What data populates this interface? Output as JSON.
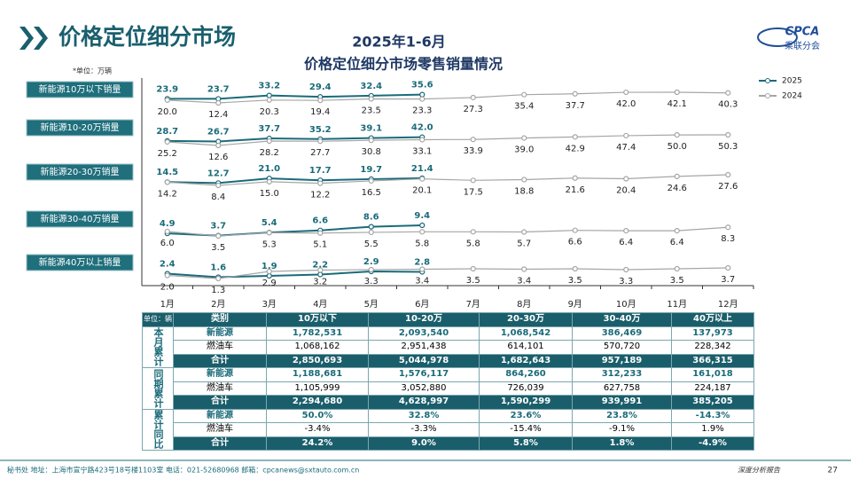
{
  "header": {
    "title": "价格定位细分市场",
    "logo": "CPCA",
    "logo_subtitle": "乘联分会"
  },
  "chart_data": {
    "type": "line",
    "title": "2025年1-6月",
    "subtitle": "价格定位细分市场零售销量情况",
    "unit": "*单位：万辆",
    "categories": [
      "1月",
      "2月",
      "3月",
      "4月",
      "5月",
      "6月",
      "7月",
      "8月",
      "9月",
      "10月",
      "11月",
      "12月"
    ],
    "panels": [
      {
        "label": "新能源10万以下销量",
        "series": [
          {
            "name": "2025",
            "color": "#1a6b7a",
            "values": [
              23.9,
              23.7,
              33.2,
              29.4,
              32.4,
              35.6
            ],
            "value_labels": [
              "23.9",
              "23.7",
              "33.2",
              "29.4",
              "32.4",
              "35.6"
            ]
          },
          {
            "name": "2024",
            "color": "#a6a6a6",
            "values": [
              20.0,
              12.4,
              20.3,
              19.4,
              23.5,
              23.3,
              27.3,
              35.4,
              37.7,
              42.0,
              42.1,
              40.3
            ],
            "value_labels": [
              "20.0",
              "12.4",
              "20.3",
              "19.4",
              "23.5",
              "23.3",
              "27.3",
              "35.4",
              "37.7",
              "42.0",
              "42.1",
              "40.3"
            ]
          }
        ]
      },
      {
        "label": "新能源10-20万销量",
        "series": [
          {
            "name": "2025",
            "color": "#1a6b7a",
            "values": [
              28.7,
              26.7,
              37.7,
              35.2,
              39.1,
              42.0
            ],
            "value_labels": [
              "28.7",
              "26.7",
              "37.7",
              "35.2",
              "39.1",
              "42.0"
            ]
          },
          {
            "name": "2024",
            "color": "#a6a6a6",
            "values": [
              25.2,
              12.6,
              28.2,
              27.7,
              30.8,
              33.1,
              33.9,
              39.0,
              42.9,
              47.4,
              50.0,
              50.3
            ],
            "value_labels": [
              "25.2",
              "12.6",
              "28.2",
              "27.7",
              "30.8",
              "33.1",
              "33.9",
              "39.0",
              "42.9",
              "47.4",
              "50.0",
              "50.3"
            ]
          }
        ]
      },
      {
        "label": "新能源20-30万销量",
        "series": [
          {
            "name": "2025",
            "color": "#1a6b7a",
            "values": [
              14.5,
              12.7,
              21.0,
              17.7,
              19.7,
              21.4
            ],
            "value_labels": [
              "14.5",
              "12.7",
              "21.0",
              "17.7",
              "19.7",
              "21.4"
            ]
          },
          {
            "name": "2024",
            "color": "#a6a6a6",
            "values": [
              14.2,
              8.4,
              15.0,
              12.2,
              16.5,
              20.1,
              17.5,
              18.8,
              21.6,
              20.4,
              24.6,
              27.6
            ],
            "value_labels": [
              "14.2",
              "8.4",
              "15.0",
              "12.2",
              "16.5",
              "20.1",
              "17.5",
              "18.8",
              "21.6",
              "20.4",
              "24.6",
              "27.6"
            ]
          }
        ]
      },
      {
        "label": "新能源30-40万销量",
        "series": [
          {
            "name": "2025",
            "color": "#1a6b7a",
            "values": [
              4.9,
              3.7,
              5.4,
              6.6,
              8.6,
              9.4
            ],
            "value_labels": [
              "4.9",
              "3.7",
              "5.4",
              "6.6",
              "8.6",
              "9.4"
            ]
          },
          {
            "name": "2024",
            "color": "#a6a6a6",
            "values": [
              6.0,
              3.5,
              5.3,
              5.1,
              5.5,
              5.8,
              5.8,
              5.7,
              6.6,
              6.4,
              6.4,
              8.3
            ],
            "value_labels": [
              "6.0",
              "3.5",
              "5.3",
              "5.1",
              "5.5",
              "5.8",
              "5.8",
              "5.7",
              "6.6",
              "6.4",
              "6.4",
              "8.3"
            ]
          }
        ]
      },
      {
        "label": "新能源40万以上销量",
        "series": [
          {
            "name": "2025",
            "color": "#1a6b7a",
            "values": [
              2.4,
              1.6,
              1.9,
              2.2,
              2.9,
              2.8
            ],
            "value_labels": [
              "2.4",
              "1.6",
              "1.9",
              "2.2",
              "2.9",
              "2.8"
            ]
          },
          {
            "name": "2024",
            "color": "#a6a6a6",
            "values": [
              2.0,
              1.3,
              2.9,
              3.2,
              3.3,
              3.4,
              3.5,
              3.4,
              3.5,
              3.3,
              3.5,
              3.7
            ],
            "value_labels": [
              "2.0",
              "1.3",
              "2.9",
              "3.2",
              "3.3",
              "3.4",
              "3.5",
              "3.4",
              "3.5",
              "3.3",
              "3.5",
              "3.7"
            ]
          }
        ]
      }
    ]
  },
  "table": {
    "unit": "单位：辆",
    "columns": [
      "类别",
      "10万以下",
      "10-20万",
      "20-30万",
      "30-40万",
      "40万以上"
    ],
    "groups": [
      {
        "label": "本月累计",
        "rows": [
          [
            "新能源",
            "1,782,531",
            "2,093,540",
            "1,068,542",
            "386,469",
            "137,973"
          ],
          [
            "燃油车",
            "1,068,162",
            "2,951,438",
            "614,101",
            "570,720",
            "228,342"
          ],
          [
            "合计",
            "2,850,693",
            "5,044,978",
            "1,682,643",
            "957,189",
            "366,315"
          ]
        ]
      },
      {
        "label": "同期累计",
        "rows": [
          [
            "新能源",
            "1,188,681",
            "1,576,117",
            "864,260",
            "312,233",
            "161,018"
          ],
          [
            "燃油车",
            "1,105,999",
            "3,052,880",
            "726,039",
            "627,758",
            "224,187"
          ],
          [
            "合计",
            "2,294,680",
            "4,628,997",
            "1,590,299",
            "939,991",
            "385,205"
          ]
        ]
      },
      {
        "label": "累计同比",
        "rows": [
          [
            "新能源",
            "50.0%",
            "32.8%",
            "23.6%",
            "23.8%",
            "-14.3%"
          ],
          [
            "燃油车",
            "-3.4%",
            "-3.3%",
            "-15.4%",
            "-9.1%",
            "1.9%"
          ],
          [
            "合计",
            "24.2%",
            "9.0%",
            "5.8%",
            "1.8%",
            "-4.9%"
          ]
        ]
      }
    ]
  },
  "footer": {
    "contact": "秘书处  地址：上海市宣宁路423号18号楼1103室  电话：021-52680968  邮箱：cpcanews@sxtauto.com.cn",
    "report": "深度分析报告",
    "page": "27"
  }
}
